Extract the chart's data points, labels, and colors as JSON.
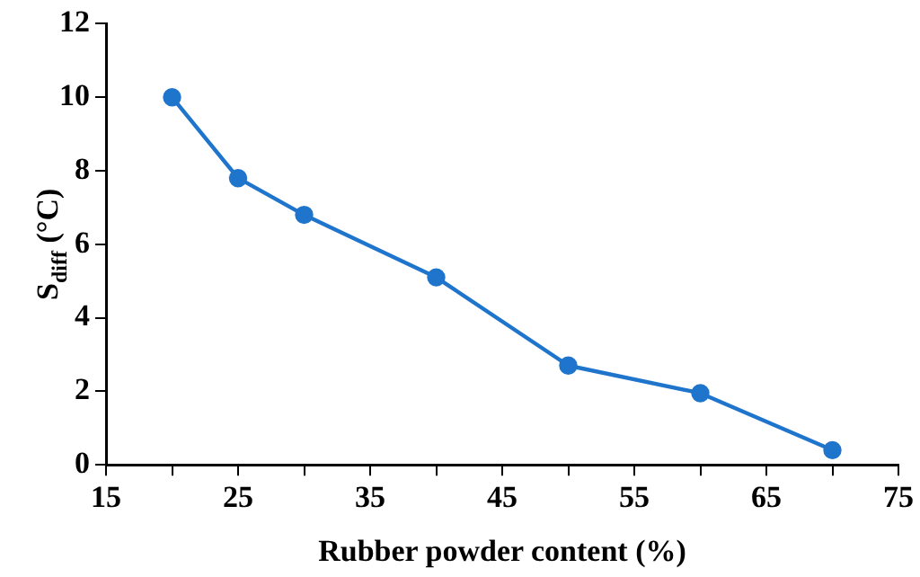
{
  "chart_data": {
    "type": "line",
    "xlabel": "Rubber powder content (%)",
    "ylabel": "S$_{diff}$ (°C)",
    "x": [
      20,
      25,
      30,
      40,
      50,
      60,
      70
    ],
    "series": [
      {
        "color": "#1f74cc",
        "values": [
          10,
          7.8,
          6.8,
          5.1,
          2.7,
          1.95,
          0.4
        ]
      }
    ],
    "xlim": [
      15,
      75
    ],
    "xticks": [
      15,
      {
        "value": 20,
        "label": null
      },
      25,
      {
        "value": 30,
        "label": null
      },
      35,
      {
        "value": 40,
        "label": null
      },
      45,
      {
        "value": 50,
        "label": null
      },
      55,
      {
        "value": 60,
        "label": null
      },
      65,
      {
        "value": 70,
        "label": null
      },
      75
    ],
    "ylim": [
      0,
      12
    ],
    "yticks": [
      0,
      2,
      4,
      6,
      8,
      10,
      12
    ],
    "grid": false,
    "legend": false,
    "marker": "circle",
    "line_style": "solid"
  }
}
